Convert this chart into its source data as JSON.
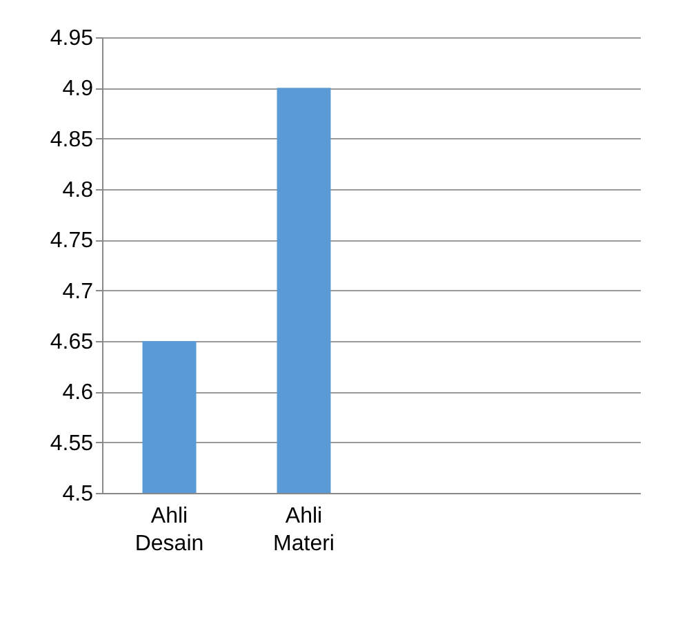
{
  "chart_data": {
    "type": "bar",
    "categories": [
      "Ahli Desain",
      "Ahli Materi",
      null,
      null
    ],
    "values": [
      4.65,
      4.9,
      null,
      null
    ],
    "color": "#5b9bd5",
    "ylim": [
      4.5,
      4.95
    ],
    "yticks": [
      4.5,
      4.55,
      4.6,
      4.65,
      4.7,
      4.75,
      4.8,
      4.85,
      4.9,
      4.95
    ],
    "grid": "y"
  }
}
